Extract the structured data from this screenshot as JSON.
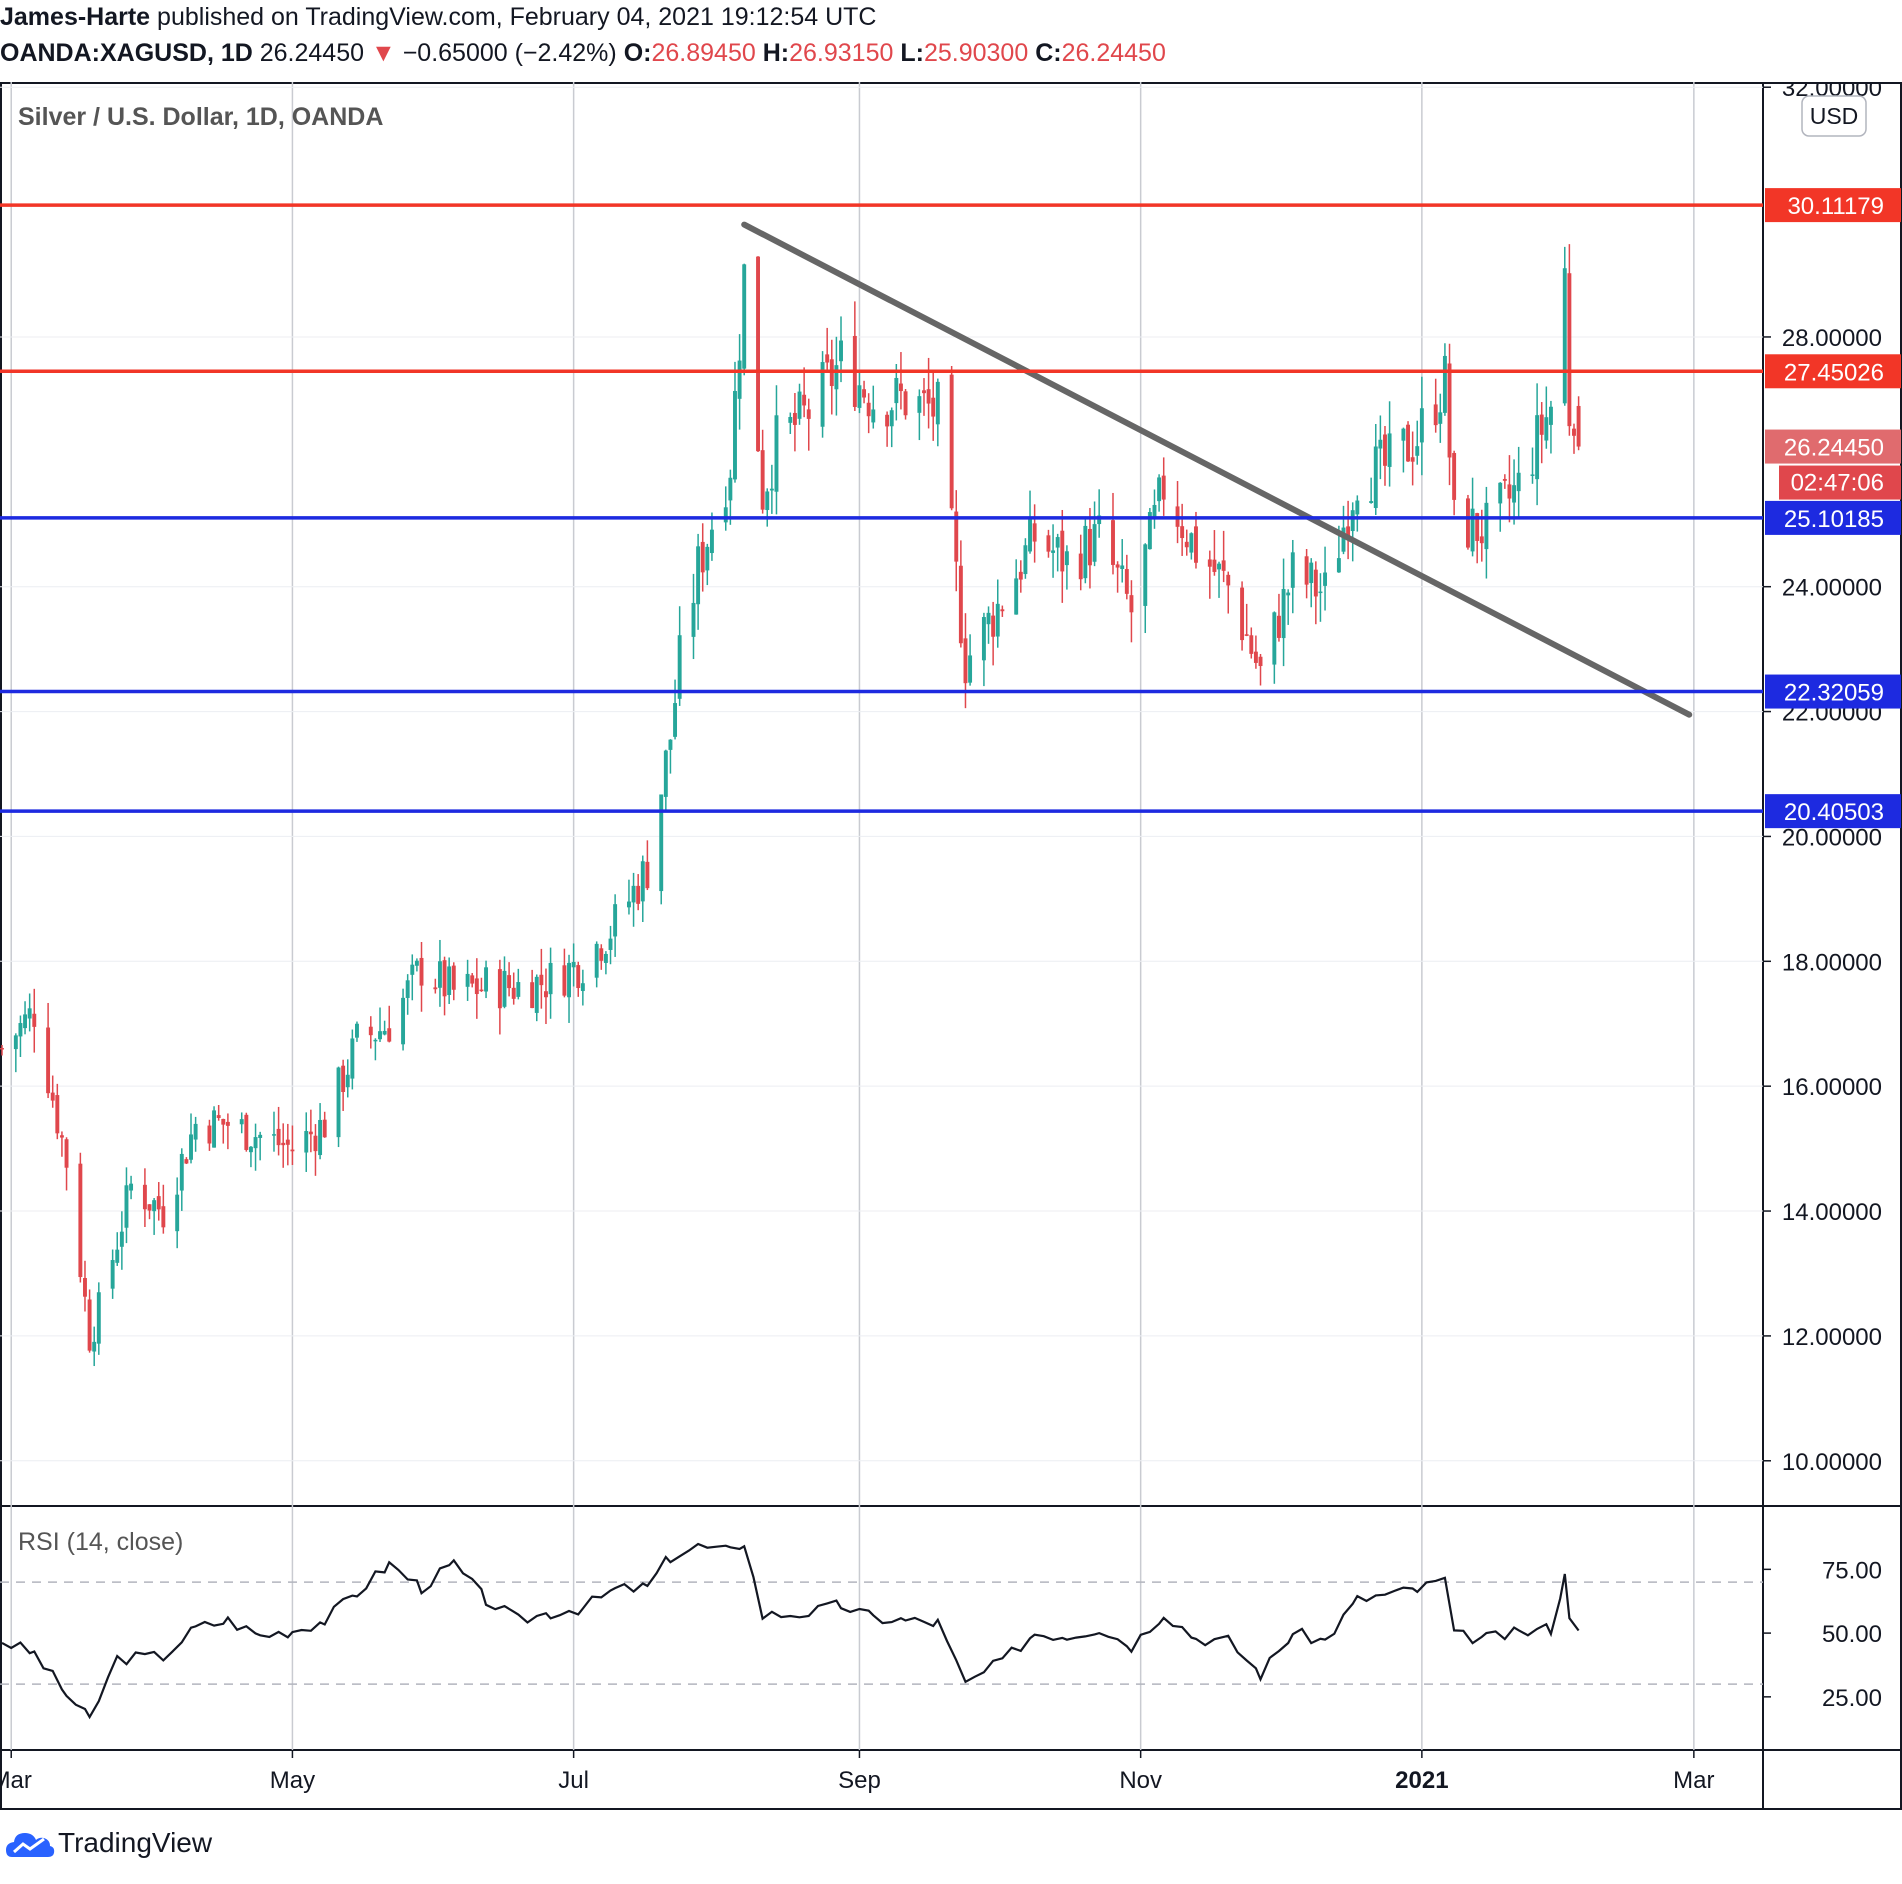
{
  "header": {
    "author": "James-Harte",
    "published": "published on TradingView.com, February 04, 2021 19:12:54 UTC",
    "symbol": "OANDA:XAGUSD, 1D",
    "last": "26.24450",
    "change_arrow": "▼",
    "change": "−0.65000 (−2.42%)",
    "o_label": "O:",
    "o_value": "26.89450",
    "h_label": "H:",
    "h_value": "26.93150",
    "l_label": "L:",
    "l_value": "25.90300",
    "c_label": "C:",
    "c_value": "26.24450"
  },
  "footer": {
    "brand": "TradingView",
    "icon": "tradingview-cloud-icon"
  },
  "colors": {
    "up": "#26a69a",
    "down": "#e0474c",
    "resistance": "#f23627",
    "support": "#1d2ae0",
    "trendline": "#666666",
    "rsi": "#131722"
  },
  "chart_data": [
    {
      "type": "candlestick",
      "title": "Silver / U.S. Dollar, 1D, OANDA",
      "currency_button": "USD",
      "ylim": [
        9.5,
        32.5
      ],
      "y_ticks": [
        "32.00000",
        "28.00000",
        "24.00000",
        "22.00000",
        "20.00000",
        "18.00000",
        "16.00000",
        "14.00000",
        "12.00000",
        "10.00000"
      ],
      "x_ticks": [
        "Mar",
        "May",
        "Jul",
        "Sep",
        "Nov",
        "2021",
        "Mar"
      ],
      "x_tick_dates": [
        "2020-03-01",
        "2020-05-01",
        "2020-07-01",
        "2020-09-01",
        "2020-11-01",
        "2021-01-01",
        "2021-03-01"
      ],
      "x_range": [
        "2020-02-28",
        "2021-03-16"
      ],
      "grid": true,
      "horizontal_levels": [
        {
          "value": 30.11179,
          "label": "30.11179",
          "kind": "resistance"
        },
        {
          "value": 27.45026,
          "label": "27.45026",
          "kind": "resistance"
        },
        {
          "value": 25.10185,
          "label": "25.10185",
          "kind": "support"
        },
        {
          "value": 22.32059,
          "label": "22.32059",
          "kind": "support"
        },
        {
          "value": 20.40503,
          "label": "20.40503",
          "kind": "support"
        }
      ],
      "last_price": {
        "value": 26.2445,
        "label": "26.24450",
        "countdown": "02:47:06"
      },
      "trendline": {
        "from": {
          "date": "2020-08-07",
          "price": 29.8
        },
        "to": {
          "date": "2021-02-28",
          "price": 21.95
        }
      },
      "series_close": [
        [
          "2020-02-28",
          16.6
        ],
        [
          "2020-03-06",
          17.2
        ],
        [
          "2020-03-13",
          14.8
        ],
        [
          "2020-03-18",
          12.0
        ],
        [
          "2020-03-20",
          12.4
        ],
        [
          "2020-03-27",
          14.4
        ],
        [
          "2020-04-03",
          14.0
        ],
        [
          "2020-04-10",
          15.4
        ],
        [
          "2020-04-17",
          15.4
        ],
        [
          "2020-04-24",
          15.2
        ],
        [
          "2020-05-01",
          15.0
        ],
        [
          "2020-05-08",
          15.4
        ],
        [
          "2020-05-15",
          16.7
        ],
        [
          "2020-05-22",
          17.0
        ],
        [
          "2020-05-29",
          17.9
        ],
        [
          "2020-06-05",
          17.5
        ],
        [
          "2020-06-12",
          17.6
        ],
        [
          "2020-06-19",
          17.6
        ],
        [
          "2020-06-26",
          17.7
        ],
        [
          "2020-07-03",
          18.0
        ],
        [
          "2020-07-10",
          18.6
        ],
        [
          "2020-07-17",
          19.5
        ],
        [
          "2020-07-22",
          21.6
        ],
        [
          "2020-07-24",
          22.8
        ],
        [
          "2020-07-28",
          24.3
        ],
        [
          "2020-08-04",
          26.0
        ],
        [
          "2020-08-07",
          29.0
        ],
        [
          "2020-08-11",
          25.5
        ],
        [
          "2020-08-14",
          26.3
        ],
        [
          "2020-08-21",
          26.8
        ],
        [
          "2020-08-28",
          27.6
        ],
        [
          "2020-09-04",
          27.0
        ],
        [
          "2020-09-11",
          27.0
        ],
        [
          "2020-09-18",
          26.8
        ],
        [
          "2020-09-21",
          24.8
        ],
        [
          "2020-09-24",
          22.8
        ],
        [
          "2020-10-02",
          23.8
        ],
        [
          "2020-10-09",
          24.8
        ],
        [
          "2020-10-16",
          24.4
        ],
        [
          "2020-10-23",
          24.8
        ],
        [
          "2020-10-30",
          23.6
        ],
        [
          "2020-11-06",
          25.6
        ],
        [
          "2020-11-13",
          24.6
        ],
        [
          "2020-11-20",
          24.0
        ],
        [
          "2020-11-27",
          22.6
        ],
        [
          "2020-12-04",
          24.2
        ],
        [
          "2020-12-11",
          23.9
        ],
        [
          "2020-12-18",
          25.8
        ],
        [
          "2020-12-24",
          25.9
        ],
        [
          "2020-12-31",
          26.4
        ],
        [
          "2021-01-06",
          27.3
        ],
        [
          "2021-01-08",
          25.0
        ],
        [
          "2021-01-15",
          24.9
        ],
        [
          "2021-01-22",
          25.6
        ],
        [
          "2021-01-29",
          26.9
        ],
        [
          "2021-02-01",
          29.0
        ],
        [
          "2021-02-02",
          26.8
        ],
        [
          "2021-02-03",
          26.9
        ],
        [
          "2021-02-04",
          26.24
        ]
      ]
    },
    {
      "type": "line",
      "title": "RSI (14, close)",
      "ylim": [
        12,
        92
      ],
      "y_ticks": [
        "75.00",
        "50.00",
        "25.00"
      ],
      "y_tick_values": [
        75,
        50,
        25
      ],
      "bands": [
        70,
        30
      ],
      "series": [
        [
          "2020-02-28",
          47
        ],
        [
          "2020-03-06",
          42
        ],
        [
          "2020-03-13",
          26
        ],
        [
          "2020-03-18",
          16
        ],
        [
          "2020-03-24",
          40
        ],
        [
          "2020-04-03",
          41
        ],
        [
          "2020-04-10",
          52
        ],
        [
          "2020-04-17",
          55
        ],
        [
          "2020-04-24",
          49
        ],
        [
          "2020-05-01",
          51
        ],
        [
          "2020-05-08",
          55
        ],
        [
          "2020-05-15",
          66
        ],
        [
          "2020-05-22",
          77
        ],
        [
          "2020-05-29",
          68
        ],
        [
          "2020-06-05",
          77
        ],
        [
          "2020-06-12",
          63
        ],
        [
          "2020-06-19",
          55
        ],
        [
          "2020-06-26",
          58
        ],
        [
          "2020-07-03",
          60
        ],
        [
          "2020-07-10",
          67
        ],
        [
          "2020-07-17",
          68
        ],
        [
          "2020-07-22",
          80
        ],
        [
          "2020-07-28",
          84
        ],
        [
          "2020-08-04",
          82
        ],
        [
          "2020-08-07",
          86
        ],
        [
          "2020-08-11",
          57
        ],
        [
          "2020-08-21",
          58
        ],
        [
          "2020-08-28",
          61
        ],
        [
          "2020-09-04",
          56
        ],
        [
          "2020-09-11",
          55
        ],
        [
          "2020-09-18",
          54
        ],
        [
          "2020-09-24",
          30
        ],
        [
          "2020-10-02",
          39
        ],
        [
          "2020-10-09",
          50
        ],
        [
          "2020-10-16",
          49
        ],
        [
          "2020-10-23",
          52
        ],
        [
          "2020-10-30",
          45
        ],
        [
          "2020-11-06",
          58
        ],
        [
          "2020-11-13",
          48
        ],
        [
          "2020-11-20",
          47
        ],
        [
          "2020-11-27",
          34
        ],
        [
          "2020-12-04",
          50
        ],
        [
          "2020-12-11",
          47
        ],
        [
          "2020-12-18",
          63
        ],
        [
          "2020-12-24",
          65
        ],
        [
          "2020-12-31",
          67
        ],
        [
          "2021-01-06",
          71
        ],
        [
          "2021-01-08",
          49
        ],
        [
          "2021-01-15",
          48
        ],
        [
          "2021-01-22",
          50
        ],
        [
          "2021-01-29",
          52
        ],
        [
          "2021-02-01",
          72
        ],
        [
          "2021-02-02",
          58
        ],
        [
          "2021-02-04",
          51
        ]
      ]
    }
  ]
}
